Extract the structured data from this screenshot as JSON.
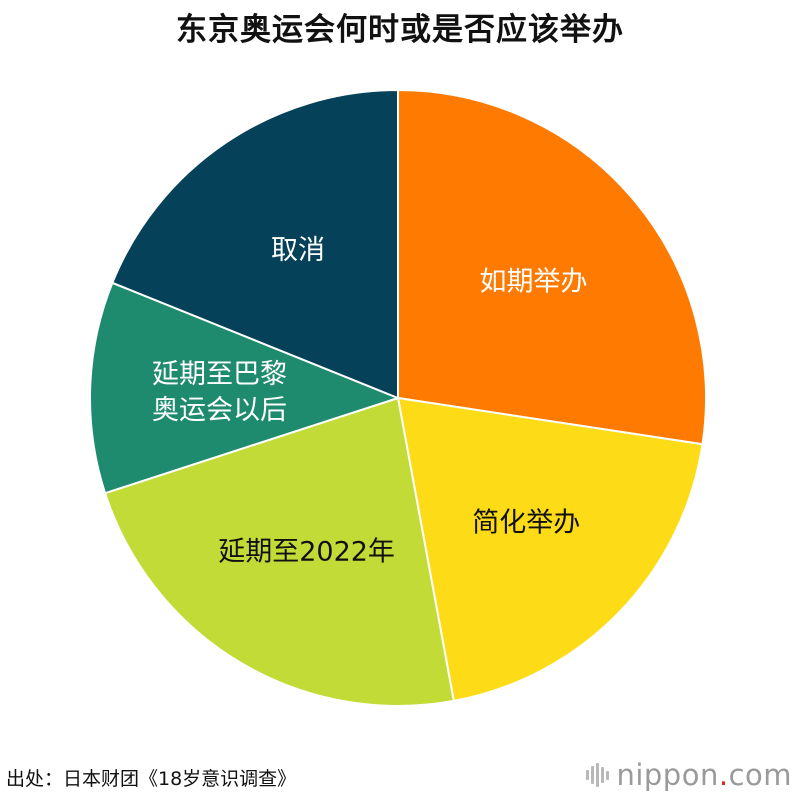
{
  "chart_data": {
    "type": "pie",
    "title": "东京奥运会何时或是否应该举办",
    "slices": [
      {
        "label": "如期举办",
        "value": 27.4,
        "color": "#FF7A00",
        "label_color": "#ffffff"
      },
      {
        "label": "简化举办",
        "value": 19.7,
        "color": "#FDDC17",
        "label_color": "#111111"
      },
      {
        "label": "延期至2022年",
        "value": 22.9,
        "color": "#C2DB37",
        "label_color": "#111111"
      },
      {
        "label": "延期至巴黎奥运会以后",
        "lines": [
          "延期至巴黎",
          "奥运会以后"
        ],
        "value": 11.1,
        "color": "#1E8B6E",
        "label_color": "#ffffff"
      },
      {
        "label": "取消",
        "value": 18.9,
        "color": "#05425A",
        "label_color": "#ffffff"
      }
    ],
    "start_angle_deg": 0,
    "direction": "clockwise"
  },
  "source": "出处：日本财团《18岁意识调查》",
  "logo": {
    "name": "nippon",
    "suffix": ".com",
    "icon": "sound-bars-icon"
  }
}
